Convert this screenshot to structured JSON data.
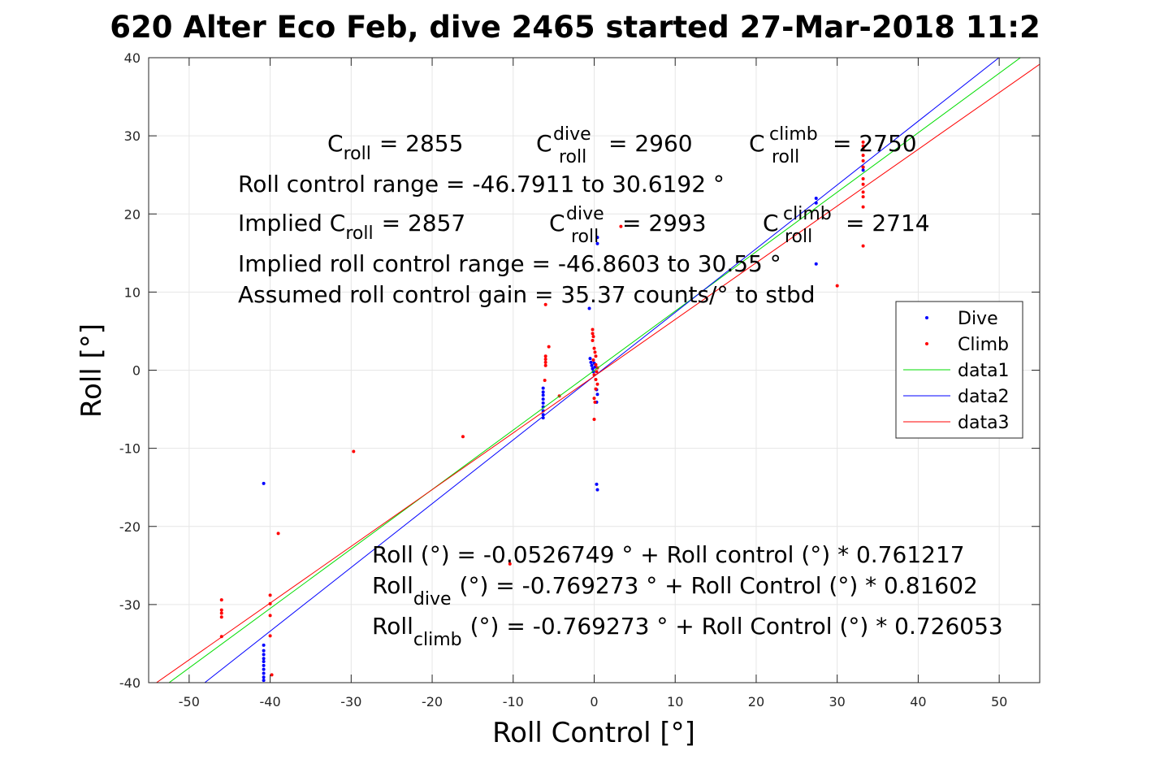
{
  "chart_data": {
    "type": "scatter",
    "title": "620 Alter Eco Feb, dive 2465 started 27-Mar-2018 11:2",
    "xlabel": "Roll Control [°]",
    "ylabel": "Roll [°]",
    "xlim": [
      -55,
      55
    ],
    "ylim": [
      -40,
      40
    ],
    "xticks": [
      -50,
      -40,
      -30,
      -20,
      -10,
      0,
      10,
      20,
      30,
      40,
      50
    ],
    "yticks": [
      -40,
      -30,
      -20,
      -10,
      0,
      10,
      20,
      30,
      40
    ],
    "grid": true,
    "legend": {
      "position": "right",
      "entries": [
        {
          "label": "Dive",
          "kind": "dot",
          "color": "#0000ff"
        },
        {
          "label": "Climb",
          "kind": "dot",
          "color": "#ff0000"
        },
        {
          "label": "data1",
          "kind": "line",
          "color": "#00dd00"
        },
        {
          "label": "data2",
          "kind": "line",
          "color": "#0000ff"
        },
        {
          "label": "data3",
          "kind": "line",
          "color": "#ff0000"
        }
      ]
    },
    "series": [
      {
        "name": "Dive",
        "color": "#0000ff",
        "points": [
          [
            -40.8,
            -14.5
          ],
          [
            -40.8,
            -35.2
          ],
          [
            -40.8,
            -35.9
          ],
          [
            -40.8,
            -36.4
          ],
          [
            -40.8,
            -36.9
          ],
          [
            -40.8,
            -37.3
          ],
          [
            -40.8,
            -37.8
          ],
          [
            -40.8,
            -38.3
          ],
          [
            -40.8,
            -38.8
          ],
          [
            -40.8,
            -39.3
          ],
          [
            -40.8,
            -39.7
          ],
          [
            -6.3,
            -2.3
          ],
          [
            -6.3,
            -2.8
          ],
          [
            -6.3,
            -3.2
          ],
          [
            -6.3,
            -3.7
          ],
          [
            -6.3,
            -4.2
          ],
          [
            -6.3,
            -4.7
          ],
          [
            -6.3,
            -5.2
          ],
          [
            -6.3,
            -5.7
          ],
          [
            -6.3,
            -6.1
          ],
          [
            -0.6,
            7.9
          ],
          [
            -0.5,
            1.5
          ],
          [
            -0.4,
            1.0
          ],
          [
            -0.3,
            0.6
          ],
          [
            -0.2,
            0.2
          ],
          [
            -0.1,
            -0.2
          ],
          [
            0.0,
            0.9
          ],
          [
            0.1,
            0.4
          ],
          [
            0.4,
            17.0
          ],
          [
            0.4,
            16.2
          ],
          [
            0.3,
            -2.5
          ],
          [
            0.4,
            -3.1
          ],
          [
            0.3,
            -4.1
          ],
          [
            0.3,
            -14.6
          ],
          [
            0.4,
            -15.3
          ],
          [
            27.4,
            22.0
          ],
          [
            27.4,
            21.4
          ],
          [
            27.4,
            13.6
          ],
          [
            33.2,
            26.0
          ],
          [
            33.2,
            25.6
          ]
        ]
      },
      {
        "name": "Climb",
        "color": "#ff0000",
        "points": [
          [
            -46.0,
            -29.4
          ],
          [
            -46.0,
            -30.7
          ],
          [
            -46.0,
            -31.1
          ],
          [
            -46.0,
            -31.6
          ],
          [
            -46.0,
            -34.1
          ],
          [
            -40.0,
            -28.8
          ],
          [
            -40.0,
            -29.9
          ],
          [
            -40.0,
            -31.4
          ],
          [
            -40.0,
            -34.0
          ],
          [
            -39.8,
            -39.0
          ],
          [
            -39.0,
            -20.9
          ],
          [
            -29.7,
            -10.4
          ],
          [
            -16.2,
            -8.5
          ],
          [
            -6.0,
            8.4
          ],
          [
            -6.0,
            1.8
          ],
          [
            -6.0,
            1.4
          ],
          [
            -6.0,
            1.0
          ],
          [
            -6.0,
            0.6
          ],
          [
            -6.1,
            -1.3
          ],
          [
            -5.6,
            3.0
          ],
          [
            -4.3,
            -3.3
          ],
          [
            -10.4,
            -24.8
          ],
          [
            -0.2,
            5.2
          ],
          [
            -0.2,
            4.7
          ],
          [
            -0.1,
            4.3
          ],
          [
            -0.2,
            3.8
          ],
          [
            0.0,
            2.8
          ],
          [
            0.1,
            2.3
          ],
          [
            0.2,
            1.8
          ],
          [
            -0.1,
            1.3
          ],
          [
            0.2,
            0.7
          ],
          [
            0.4,
            0.3
          ],
          [
            0.3,
            -0.2
          ],
          [
            0.0,
            -0.6
          ],
          [
            0.2,
            -1.2
          ],
          [
            0.4,
            -1.8
          ],
          [
            0.2,
            -2.4
          ],
          [
            0.0,
            -3.6
          ],
          [
            0.1,
            -4.1
          ],
          [
            0.0,
            -6.3
          ],
          [
            3.3,
            18.4
          ],
          [
            30.0,
            10.8
          ],
          [
            33.2,
            29.2
          ],
          [
            33.2,
            28.7
          ],
          [
            33.2,
            28.3
          ],
          [
            33.2,
            27.5
          ],
          [
            33.2,
            26.8
          ],
          [
            33.2,
            26.0
          ],
          [
            33.2,
            24.5
          ],
          [
            33.2,
            23.8
          ],
          [
            33.2,
            22.8
          ],
          [
            33.2,
            22.2
          ],
          [
            33.2,
            20.9
          ],
          [
            33.2,
            15.9
          ]
        ]
      },
      {
        "name": "data1",
        "kind": "line",
        "color": "#00dd00",
        "points": [
          [
            -55,
            -41.919
          ],
          [
            55,
            41.814
          ]
        ]
      },
      {
        "name": "data2",
        "kind": "line",
        "color": "#0000ff",
        "points": [
          [
            -55,
            -45.65
          ],
          [
            55,
            44.112
          ]
        ]
      },
      {
        "name": "data3",
        "kind": "line",
        "color": "#ff0000",
        "points": [
          [
            -55,
            -40.702
          ],
          [
            55,
            39.164
          ]
        ]
      }
    ],
    "annotations": {
      "c_roll": {
        "base": "C",
        "sub": "roll",
        "value": "= 2855"
      },
      "c_roll_dive": {
        "base": "C",
        "sup": "dive",
        "sub": "roll",
        "value": "= 2960"
      },
      "c_roll_climb": {
        "base": "C",
        "sup": "climb",
        "sub": "roll",
        "value": "= 2750"
      },
      "roll_control_range": "Roll control range = -46.7911 to 30.6192 °",
      "implied_c_roll": {
        "prefix": "Implied C",
        "sub": "roll",
        "value": "= 2857"
      },
      "implied_c_roll_dive": {
        "base": "C",
        "sup": "dive",
        "sub": "roll",
        "value": "= 2993"
      },
      "implied_c_roll_climb": {
        "base": "C",
        "sup": "climb",
        "sub": "roll",
        "value": "= 2714"
      },
      "implied_range": "Implied roll control range = -46.8603 to 30.55 °",
      "gain": "Assumed roll control gain = 35.37 counts/° to stbd",
      "fit_all": "Roll (°) = -0.0526749 ° + Roll control (°) * 0.761217",
      "fit_dive": {
        "base": "Roll",
        "sub": "dive",
        "rest": "(°) = -0.769273 ° + Roll Control (°) * 0.81602"
      },
      "fit_climb": {
        "base": "Roll",
        "sub": "climb",
        "rest": "(°) = -0.769273 ° + Roll Control (°) * 0.726053"
      }
    }
  }
}
